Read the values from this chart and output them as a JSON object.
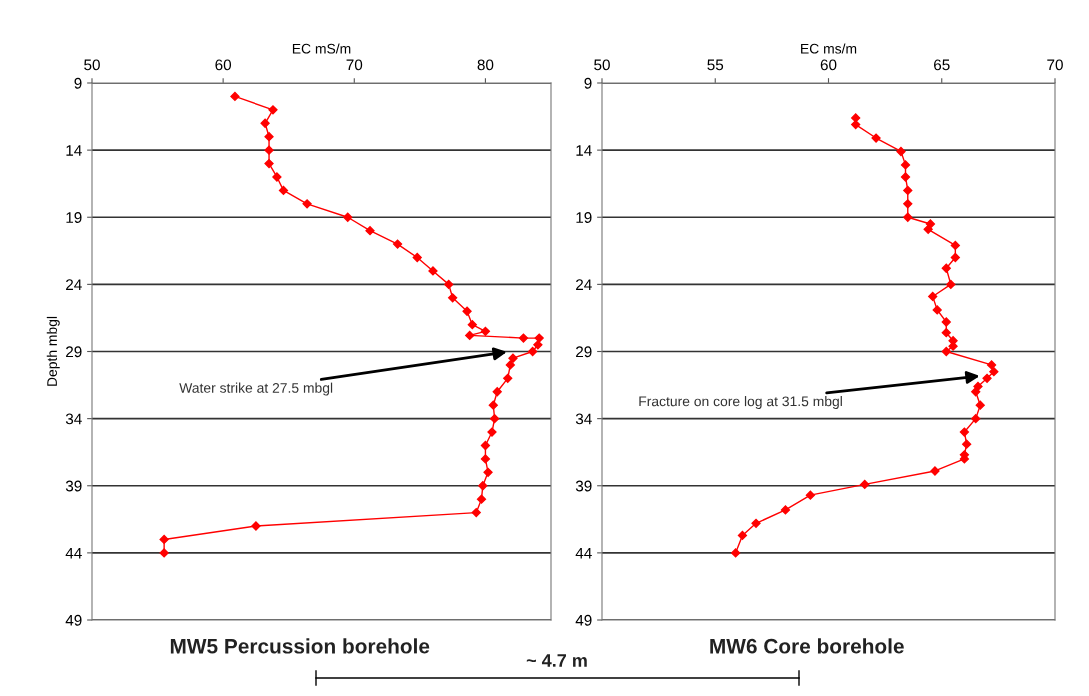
{
  "chart_data": [
    {
      "type": "line",
      "xlabel": "EC mS/m",
      "ylabel": "Depth mbgl",
      "xlim": [
        50,
        85
      ],
      "xticks": [
        50,
        60,
        70,
        80
      ],
      "ylim": [
        49,
        9
      ],
      "yticks": [
        9,
        14,
        19,
        24,
        29,
        34,
        39,
        44,
        49
      ],
      "grid": "y",
      "marker": "diamond",
      "line_style": "solid",
      "series": [
        {
          "color": "#ff0000",
          "x": [
            60.9,
            63.8,
            63.2,
            63.5,
            63.5,
            63.5,
            64.1,
            64.6,
            66.4,
            69.5,
            71.2,
            73.3,
            74.8,
            76.0,
            77.2,
            77.5,
            78.6,
            79.0,
            80.0,
            78.8,
            82.9,
            84.1,
            84.0,
            83.6,
            82.1,
            81.9,
            81.7,
            80.9,
            80.6,
            80.7,
            80.5,
            80.0,
            80.0,
            80.2,
            79.8,
            79.7,
            79.3,
            62.5,
            55.5,
            55.5
          ],
          "values": [
            10,
            11,
            12,
            13,
            14,
            15,
            16,
            17,
            18,
            19,
            20,
            21,
            22,
            23,
            24,
            25,
            26,
            27,
            27.5,
            27.8,
            28,
            28,
            28.5,
            29,
            29.5,
            30,
            31,
            32,
            33,
            34,
            35,
            36,
            37,
            38,
            39,
            40,
            41,
            42,
            43,
            44
          ]
        }
      ],
      "annotations": [
        "Water strike at 27.5 mbgl",
        "MW5 Percussion borehole",
        "~ 4.7 m"
      ]
    },
    {
      "type": "line",
      "xlabel": "EC ms/m",
      "xlim": [
        50,
        70
      ],
      "xticks": [
        50,
        55,
        60,
        65,
        70
      ],
      "ylim": [
        49,
        9
      ],
      "yticks": [
        9,
        14,
        19,
        24,
        29,
        34,
        39,
        44,
        49
      ],
      "grid": "y",
      "marker": "diamond",
      "line_style": "solid",
      "series": [
        {
          "color": "#ff0000",
          "x": [
            61.2,
            61.2,
            62.1,
            63.2,
            63.4,
            63.4,
            63.5,
            63.5,
            63.5,
            64.5,
            64.4,
            65.6,
            65.6,
            65.2,
            65.4,
            64.6,
            64.8,
            65.2,
            65.2,
            65.5,
            65.5,
            65.2,
            67.2,
            67.3,
            67.0,
            66.6,
            66.5,
            66.7,
            66.5,
            66.0,
            66.1,
            66.0,
            66.0,
            64.7,
            61.6,
            59.2,
            58.1,
            56.8,
            56.2,
            55.9
          ],
          "values": [
            11.6,
            12.1,
            13.1,
            14.1,
            15.1,
            16,
            17,
            18,
            19,
            19.5,
            19.9,
            21.1,
            22,
            22.8,
            24,
            24.9,
            25.9,
            26.8,
            27.6,
            28.2,
            28.6,
            29,
            30,
            30.5,
            31,
            31.6,
            32,
            33,
            34,
            35,
            35.9,
            36.7,
            37,
            37.9,
            38.9,
            39.7,
            40.8,
            41.8,
            42.7,
            44
          ]
        }
      ],
      "annotations": [
        "Fracture on core log at 31.5 mbgl",
        "MW6 Core borehole"
      ]
    }
  ]
}
